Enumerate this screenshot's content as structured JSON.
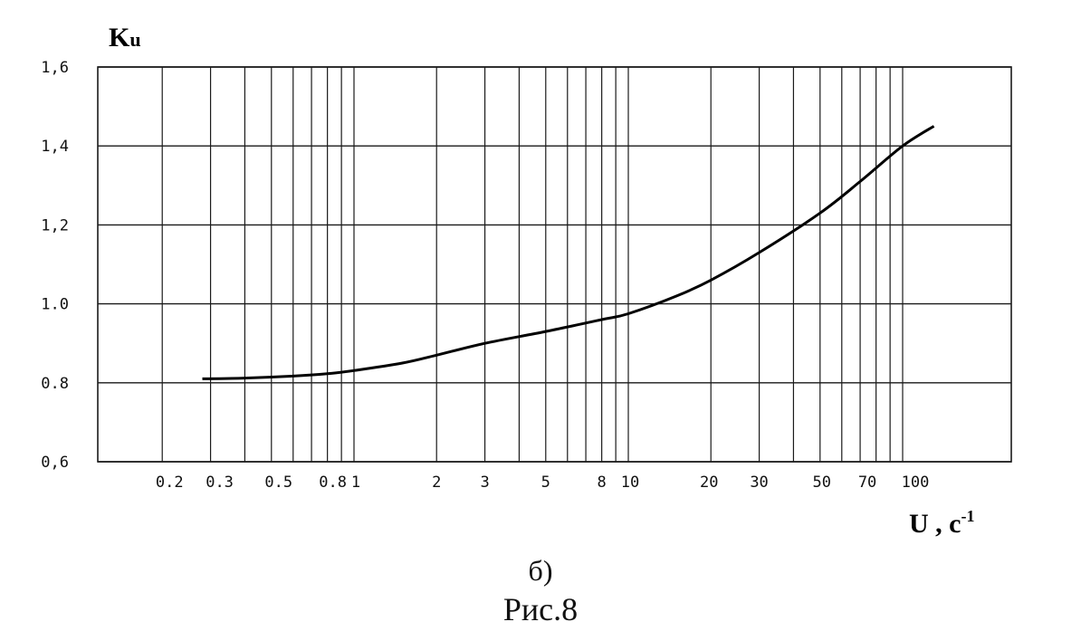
{
  "chart_data": {
    "type": "line",
    "x_scale": "log",
    "xlabel": "U , c",
    "xlabel_superscript": "-1",
    "ylabel": "K",
    "ylabel_subscript": "u",
    "ylim": [
      0.6,
      1.6
    ],
    "yticks": [
      0.6,
      0.8,
      1.0,
      1.2,
      1.4,
      1.6
    ],
    "ytick_labels": [
      "0,6",
      "0.8",
      "1.0",
      "1,2",
      "1,4",
      "1,6"
    ],
    "xticks": [
      0.2,
      0.3,
      0.5,
      0.8,
      1,
      2,
      3,
      5,
      8,
      10,
      20,
      30,
      50,
      70,
      100
    ],
    "xtick_labels": [
      "0.2",
      "0.3",
      "0.5",
      "0.8",
      "1",
      "2",
      "3",
      "5",
      "8",
      "10",
      "20",
      "30",
      "50",
      "70",
      "100"
    ],
    "grid": true,
    "series": [
      {
        "x": [
          0.28,
          0.4,
          0.6,
          0.8,
          1,
          1.5,
          2,
          3,
          5,
          8,
          10,
          15,
          20,
          30,
          50,
          70,
          100,
          130
        ],
        "y": [
          0.81,
          0.812,
          0.817,
          0.823,
          0.831,
          0.85,
          0.87,
          0.9,
          0.93,
          0.96,
          0.975,
          1.02,
          1.06,
          1.13,
          1.23,
          1.31,
          1.4,
          1.45
        ]
      }
    ]
  },
  "caption": {
    "sub": "б)",
    "figure": "Рис.8"
  },
  "colors": {
    "grid": "#1a1a1a",
    "curve": "#000000"
  }
}
